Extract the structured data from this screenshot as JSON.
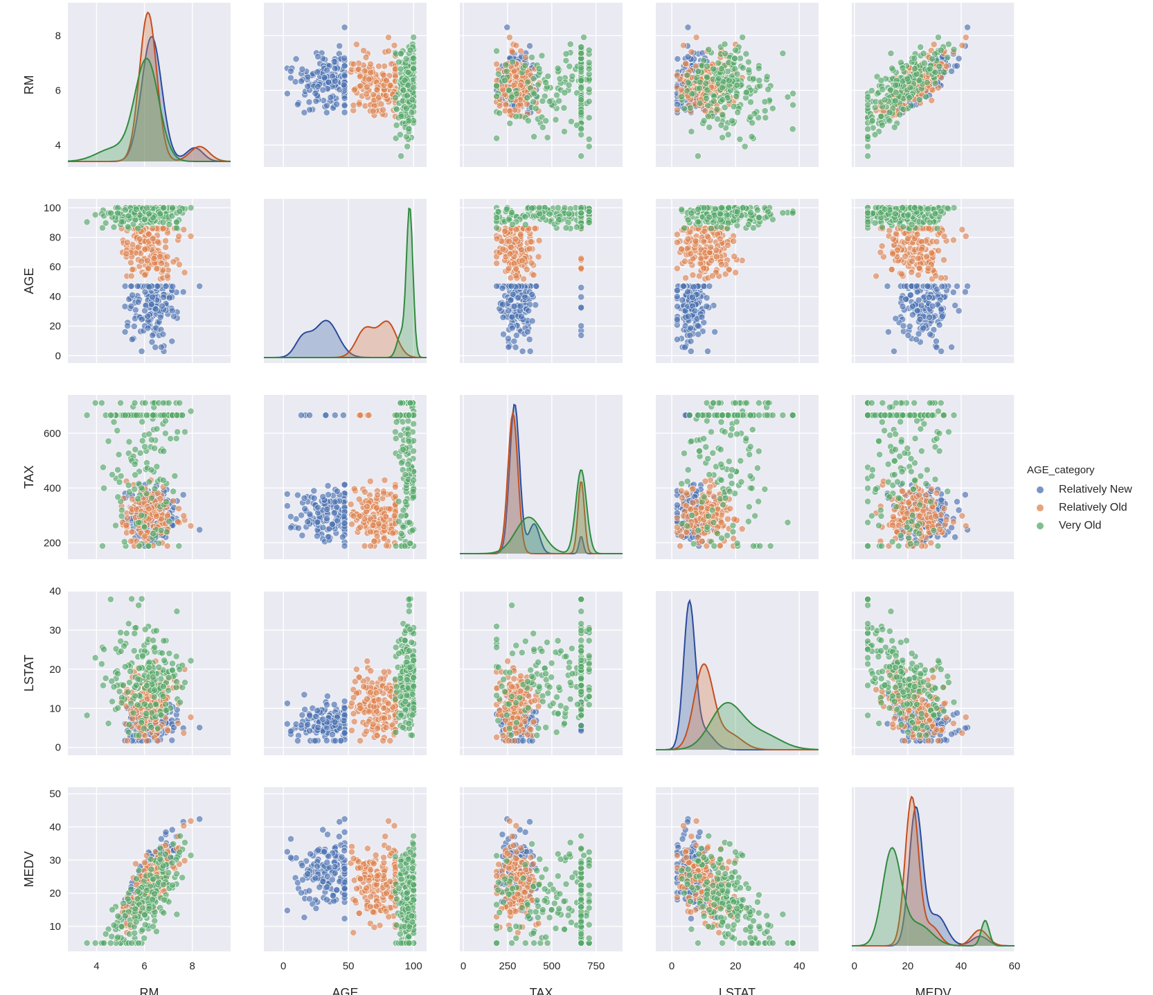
{
  "chart_data": {
    "type": "scatter",
    "kind": "pairplot",
    "variables": [
      "RM",
      "AGE",
      "TAX",
      "LSTAT",
      "MEDV"
    ],
    "hue": "AGE_category",
    "diag_kind": "kde",
    "grid": true,
    "legend_position": "right",
    "axes": {
      "RM": {
        "lim": [
          2.8,
          9.6
        ],
        "ticks": [
          4,
          6,
          8
        ],
        "tick_labels": [
          "4",
          "6",
          "8"
        ]
      },
      "AGE": {
        "lim": [
          -15,
          110
        ],
        "ticks": [
          0,
          50,
          100
        ],
        "tick_labels": [
          "0",
          "50",
          "100"
        ],
        "y_ticks": [
          0,
          20,
          40,
          60,
          80,
          100
        ],
        "y_tick_labels": [
          "0",
          "20",
          "40",
          "60",
          "80",
          "100"
        ]
      },
      "TAX": {
        "lim": [
          -20,
          900
        ],
        "ticks": [
          0,
          250,
          500,
          750
        ],
        "tick_labels": [
          "0",
          "250",
          "500",
          "750"
        ],
        "y_lim": [
          140,
          740
        ],
        "y_ticks": [
          200,
          400,
          600
        ],
        "y_tick_labels": [
          "200",
          "400",
          "600"
        ]
      },
      "LSTAT": {
        "lim": [
          -5,
          46
        ],
        "ticks": [
          0,
          20,
          40
        ],
        "tick_labels": [
          "0",
          "20",
          "40"
        ],
        "y_lim": [
          -2,
          40
        ],
        "y_ticks": [
          0,
          10,
          20,
          30,
          40
        ],
        "y_tick_labels": [
          "0",
          "10",
          "20",
          "30",
          "40"
        ]
      },
      "MEDV": {
        "lim": [
          -1,
          60
        ],
        "ticks": [
          0,
          20,
          40,
          60
        ],
        "tick_labels": [
          "0",
          "20",
          "40",
          "60"
        ],
        "y_lim": [
          2.5,
          52
        ],
        "y_ticks": [
          10,
          20,
          30,
          40,
          50
        ],
        "y_tick_labels": [
          "10",
          "20",
          "30",
          "40",
          "50"
        ]
      }
    },
    "rm_y": {
      "lim": [
        3.2,
        9.2
      ],
      "ticks": [
        4,
        6,
        8
      ],
      "tick_labels": [
        "4",
        "6",
        "8"
      ]
    },
    "age_y": {
      "lim": [
        -5,
        106
      ]
    },
    "series": [
      {
        "name": "Relatively New",
        "color": "#4c72b0",
        "line_color": "#2a4a9a",
        "n": 160,
        "dist": {
          "RM": [
            6.4,
            0.5
          ],
          "AGE": [
            33,
            13
          ],
          "TAX": [
            300,
            55
          ],
          "LSTAT": [
            6.5,
            2.5
          ],
          "MEDV": [
            25,
            6
          ]
        },
        "kde": {
          "RM": [
            [
              6.3,
              0.42,
              0.88
            ],
            [
              8.1,
              0.35,
              0.08
            ]
          ],
          "AGE": [
            [
              33,
              9,
              0.75
            ],
            [
              15,
              6,
              0.25
            ]
          ],
          "TAX": [
            [
              290,
              28,
              0.8
            ],
            [
              400,
              30,
              0.17
            ],
            [
              666,
              12,
              0.04
            ]
          ],
          "LSTAT": [
            [
              5.5,
              1.8,
              0.82
            ],
            [
              10,
              3,
              0.18
            ]
          ],
          "MEDV": [
            [
              23,
              2.5,
              0.72
            ],
            [
              31,
              3.5,
              0.22
            ],
            [
              47,
              3,
              0.06
            ]
          ]
        }
      },
      {
        "name": "Relatively Old",
        "color": "#dd8452",
        "line_color": "#c44e1c",
        "n": 170,
        "dist": {
          "RM": [
            6.2,
            0.55
          ],
          "AGE": [
            72,
            11
          ],
          "TAX": [
            300,
            55
          ],
          "LSTAT": [
            11,
            4
          ],
          "MEDV": [
            22,
            6
          ]
        },
        "kde": {
          "RM": [
            [
              6.15,
              0.36,
              0.9
            ],
            [
              8.3,
              0.4,
              0.1
            ]
          ],
          "AGE": [
            [
              80,
              7,
              0.55
            ],
            [
              63,
              7,
              0.45
            ]
          ],
          "TAX": [
            [
              280,
              28,
              0.75
            ],
            [
              666,
              18,
              0.25
            ]
          ],
          "LSTAT": [
            [
              10,
              3,
              0.8
            ],
            [
              18,
              4,
              0.2
            ]
          ],
          "MEDV": [
            [
              21.5,
              2.5,
              0.78
            ],
            [
              29,
              3,
              0.12
            ],
            [
              47,
              3,
              0.1
            ]
          ]
        }
      },
      {
        "name": "Very Old",
        "color": "#55a868",
        "line_color": "#2f8a3e",
        "n": 190,
        "dist": {
          "RM": [
            6.0,
            0.8
          ],
          "AGE": [
            95,
            4
          ],
          "TAX": [
            450,
            170
          ],
          "LSTAT": [
            18,
            7
          ],
          "MEDV": [
            16,
            8
          ]
        },
        "kde": {
          "RM": [
            [
              6.1,
              0.5,
              0.85
            ],
            [
              4.7,
              0.7,
              0.15
            ]
          ],
          "AGE": [
            [
              97,
              2.5,
              0.85
            ],
            [
              90,
              3,
              0.15
            ]
          ],
          "TAX": [
            [
              370,
              75,
              0.52
            ],
            [
              666,
              30,
              0.48
            ]
          ],
          "LSTAT": [
            [
              17,
              5,
              0.7
            ],
            [
              28,
              6,
              0.3
            ]
          ],
          "MEDV": [
            [
              14,
              3.5,
              0.7
            ],
            [
              24,
              5,
              0.22
            ],
            [
              49,
              1.5,
              0.08
            ]
          ]
        }
      }
    ]
  },
  "legend": {
    "title": "AGE_category",
    "items": [
      "Relatively New",
      "Relatively Old",
      "Very Old"
    ]
  }
}
